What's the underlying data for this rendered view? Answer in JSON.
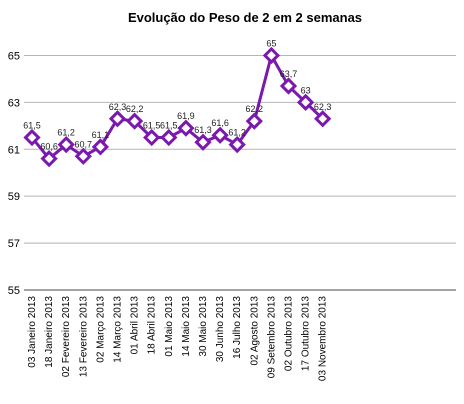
{
  "chart_data": {
    "type": "line",
    "title": "Evolução do Peso de 2 em 2 semanas",
    "xlabel": "",
    "ylabel": "",
    "categories": [
      "03 Janeiro 2013",
      "18 Janeiro 2013",
      "02 Fevereiro 2013",
      "13 Fevereiro 2013",
      "02 Março 2013",
      "14 Março 2013",
      "01 Abril 2013",
      "18 Abril 2013",
      "01 Maio 2013",
      "14 Maio 2013",
      "30 Maio 2013",
      "30 Junho 2013",
      "16 Julho 2013",
      "02 Agosto 2013",
      "09 Setembro 2013",
      "02 Outubro 2013",
      "17 Outubro 2013",
      "03 Novembro 2013"
    ],
    "values": [
      61.5,
      60.6,
      61.2,
      60.7,
      61.1,
      62.3,
      62.2,
      61.5,
      61.5,
      61.9,
      61.3,
      61.6,
      61.2,
      62.2,
      65,
      63.7,
      63,
      62.3
    ],
    "data_labels": [
      "61,5",
      "60,6",
      "61,2",
      "60,7",
      "61,1",
      "62,3",
      "62,2",
      "61,5",
      "61,5",
      "61,9",
      "61,3",
      "61,6",
      "61,2",
      "62,2",
      "65",
      "63,7",
      "63",
      "62,3"
    ],
    "ylim": [
      55,
      66
    ],
    "yticks": [
      55,
      57,
      59,
      61,
      63,
      65
    ],
    "grid": true,
    "legend": "none",
    "line_color": "#7b18ad",
    "marker": "diamond"
  }
}
